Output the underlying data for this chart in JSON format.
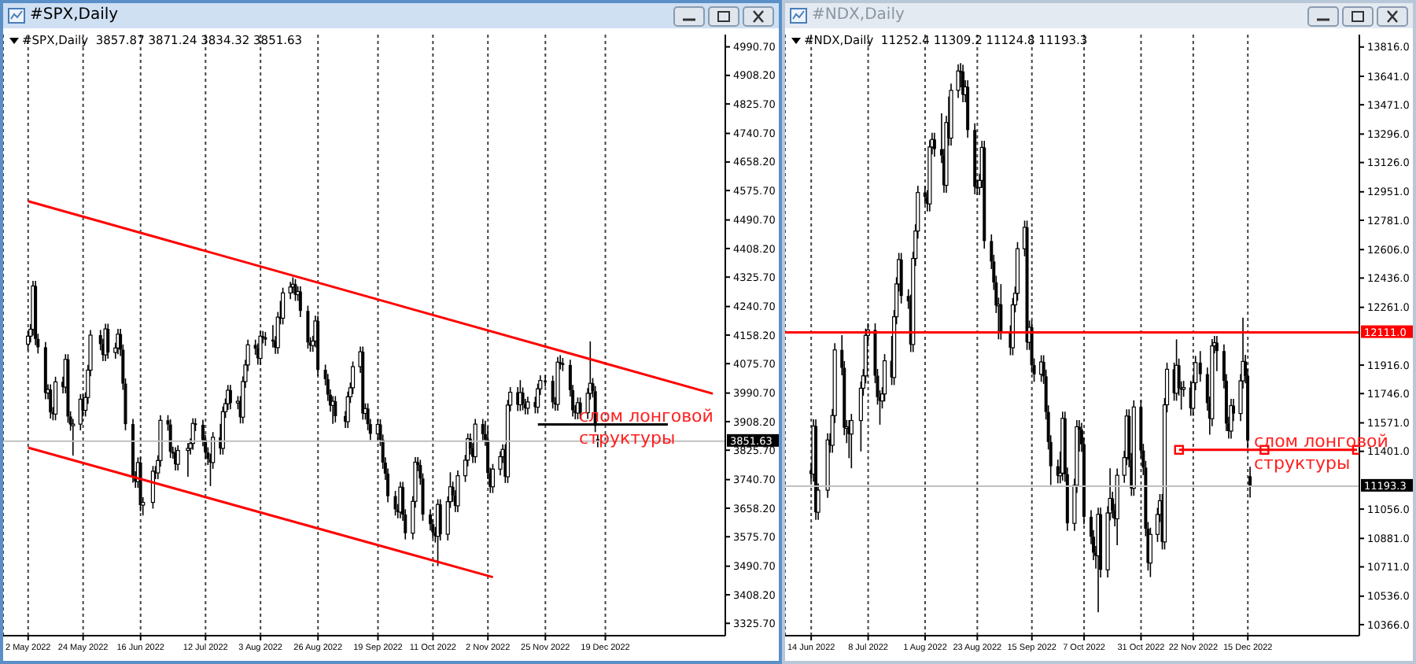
{
  "chart_data": [
    {
      "type": "candlestick",
      "title": "#SPX,Daily",
      "subtitle": "#SPX,Daily  3857.87 3871.24 3834.32 3851.63",
      "color": "#000000",
      "grid": "x",
      "xlim": [
        "2022-04-22",
        "2023-02-05"
      ],
      "xticks": [
        {
          "value": "2022-05-02",
          "label": "2 May 2022"
        },
        {
          "value": "2022-05-24",
          "label": "24 May 2022"
        },
        {
          "value": "2022-06-16",
          "label": "16 Jun 2022"
        },
        {
          "value": "2022-07-12",
          "label": "12 Jul 2022"
        },
        {
          "value": "2022-08-03",
          "label": "3 Aug 2022"
        },
        {
          "value": "2022-08-26",
          "label": "26 Aug 2022"
        },
        {
          "value": "2022-09-19",
          "label": "19 Sep 2022"
        },
        {
          "value": "2022-10-11",
          "label": "11 Oct 2022"
        },
        {
          "value": "2022-11-02",
          "label": "2 Nov 2022"
        },
        {
          "value": "2022-11-25",
          "label": "25 Nov 2022"
        },
        {
          "value": "2022-12-19",
          "label": "19 Dec 2022"
        }
      ],
      "ylim": [
        3290,
        5026
      ],
      "yticks": [
        {
          "value": 4990.7,
          "label": "4990.70"
        },
        {
          "value": 4908.2,
          "label": "4908.20"
        },
        {
          "value": 4825.7,
          "label": "4825.70"
        },
        {
          "value": 4740.7,
          "label": "4740.70"
        },
        {
          "value": 4658.2,
          "label": "4658.20"
        },
        {
          "value": 4575.7,
          "label": "4575.70"
        },
        {
          "value": 4490.7,
          "label": "4490.70"
        },
        {
          "value": 4408.2,
          "label": "4408.20"
        },
        {
          "value": 4325.7,
          "label": "4325.70"
        },
        {
          "value": 4240.7,
          "label": "4240.70"
        },
        {
          "value": 4158.2,
          "label": "4158.20"
        },
        {
          "value": 4075.7,
          "label": "4075.70"
        },
        {
          "value": 3990.7,
          "label": "3990.70"
        },
        {
          "value": 3908.2,
          "label": "3908.20"
        },
        {
          "value": 3825.7,
          "label": "3825.70"
        },
        {
          "value": 3740.7,
          "label": "3740.70"
        },
        {
          "value": 3658.2,
          "label": "3658.20"
        },
        {
          "value": 3575.7,
          "label": "3575.70"
        },
        {
          "value": 3490.7,
          "label": "3490.70"
        },
        {
          "value": 3408.2,
          "label": "3408.20"
        },
        {
          "value": 3325.7,
          "label": "3325.70"
        }
      ],
      "x": [
        "2022-05-02",
        "2022-05-03",
        "2022-05-04",
        "2022-05-05",
        "2022-05-06",
        "2022-05-09",
        "2022-05-10",
        "2022-05-11",
        "2022-05-12",
        "2022-05-13",
        "2022-05-16",
        "2022-05-17",
        "2022-05-18",
        "2022-05-19",
        "2022-05-20",
        "2022-05-23",
        "2022-05-24",
        "2022-05-25",
        "2022-05-26",
        "2022-05-27",
        "2022-05-31",
        "2022-06-01",
        "2022-06-02",
        "2022-06-03",
        "2022-06-06",
        "2022-06-07",
        "2022-06-08",
        "2022-06-09",
        "2022-06-10",
        "2022-06-13",
        "2022-06-14",
        "2022-06-15",
        "2022-06-16",
        "2022-06-17",
        "2022-06-21",
        "2022-06-22",
        "2022-06-23",
        "2022-06-24",
        "2022-06-27",
        "2022-06-28",
        "2022-06-29",
        "2022-06-30",
        "2022-07-01",
        "2022-07-05",
        "2022-07-06",
        "2022-07-07",
        "2022-07-08",
        "2022-07-11",
        "2022-07-12",
        "2022-07-13",
        "2022-07-14",
        "2022-07-15",
        "2022-07-18",
        "2022-07-19",
        "2022-07-20",
        "2022-07-21",
        "2022-07-22",
        "2022-07-25",
        "2022-07-26",
        "2022-07-27",
        "2022-07-28",
        "2022-07-29",
        "2022-08-01",
        "2022-08-02",
        "2022-08-03",
        "2022-08-04",
        "2022-08-05",
        "2022-08-08",
        "2022-08-09",
        "2022-08-10",
        "2022-08-11",
        "2022-08-12",
        "2022-08-15",
        "2022-08-16",
        "2022-08-17",
        "2022-08-18",
        "2022-08-19",
        "2022-08-22",
        "2022-08-23",
        "2022-08-24",
        "2022-08-25",
        "2022-08-26",
        "2022-08-29",
        "2022-08-30",
        "2022-08-31",
        "2022-09-01",
        "2022-09-02",
        "2022-09-06",
        "2022-09-07",
        "2022-09-08",
        "2022-09-09",
        "2022-09-12",
        "2022-09-13",
        "2022-09-14",
        "2022-09-15",
        "2022-09-16",
        "2022-09-19",
        "2022-09-20",
        "2022-09-21",
        "2022-09-22",
        "2022-09-23",
        "2022-09-26",
        "2022-09-27",
        "2022-09-28",
        "2022-09-29",
        "2022-09-30",
        "2022-10-03",
        "2022-10-04",
        "2022-10-05",
        "2022-10-06",
        "2022-10-07",
        "2022-10-10",
        "2022-10-11",
        "2022-10-12",
        "2022-10-13",
        "2022-10-14",
        "2022-10-17",
        "2022-10-18",
        "2022-10-19",
        "2022-10-20",
        "2022-10-21",
        "2022-10-24",
        "2022-10-25",
        "2022-10-26",
        "2022-10-27",
        "2022-10-28",
        "2022-10-31",
        "2022-11-01",
        "2022-11-02",
        "2022-11-03",
        "2022-11-04",
        "2022-11-07",
        "2022-11-08",
        "2022-11-09",
        "2022-11-10",
        "2022-11-11",
        "2022-11-14",
        "2022-11-15",
        "2022-11-16",
        "2022-11-17",
        "2022-11-18",
        "2022-11-21",
        "2022-11-22",
        "2022-11-23",
        "2022-11-25",
        "2022-11-28",
        "2022-11-29",
        "2022-11-30",
        "2022-12-01",
        "2022-12-02",
        "2022-12-05",
        "2022-12-06",
        "2022-12-07",
        "2022-12-08",
        "2022-12-09",
        "2022-12-12",
        "2022-12-13",
        "2022-12-14",
        "2022-12-15",
        "2022-12-16"
      ],
      "ohlc": [
        [
          4132,
          4170,
          4114,
          4155
        ],
        [
          4155,
          4190,
          4137,
          4175
        ],
        [
          4175,
          4315,
          4157,
          4300
        ],
        [
          4300,
          4315,
          4129,
          4147
        ],
        [
          4147,
          4162,
          4105,
          4123
        ],
        [
          4123,
          4138,
          3973,
          3991
        ],
        [
          3991,
          4016,
          3973,
          4001
        ],
        [
          4001,
          4016,
          3917,
          3935
        ],
        [
          3935,
          3950,
          3912,
          3930
        ],
        [
          3930,
          4038,
          3912,
          4023
        ],
        [
          4023,
          4038,
          3990,
          4008
        ],
        [
          4008,
          4103,
          3990,
          4088
        ],
        [
          4088,
          4103,
          3905,
          3923
        ],
        [
          3923,
          3938,
          3882,
          3900
        ],
        [
          3900,
          3916,
          3810,
          3901
        ],
        [
          3901,
          3988,
          3883,
          3973
        ],
        [
          3973,
          3988,
          3923,
          3941
        ],
        [
          3941,
          3993,
          3923,
          3978
        ],
        [
          3978,
          4072,
          3960,
          4057
        ],
        [
          4057,
          4173,
          4039,
          4158
        ],
        [
          4158,
          4173,
          4114,
          4132
        ],
        [
          4132,
          4147,
          4083,
          4101
        ],
        [
          4101,
          4191,
          4083,
          4176
        ],
        [
          4176,
          4191,
          4090,
          4108
        ],
        [
          4108,
          4136,
          4090,
          4121
        ],
        [
          4121,
          4176,
          4103,
          4161
        ],
        [
          4161,
          4176,
          4098,
          4116
        ],
        [
          4116,
          4131,
          4000,
          4018
        ],
        [
          4018,
          4033,
          3883,
          3901
        ],
        [
          3901,
          3916,
          3732,
          3750
        ],
        [
          3750,
          3765,
          3717,
          3735
        ],
        [
          3735,
          3805,
          3717,
          3790
        ],
        [
          3790,
          3805,
          3649,
          3667
        ],
        [
          3667,
          3690,
          3637,
          3675
        ],
        [
          3675,
          3780,
          3657,
          3765
        ],
        [
          3765,
          3780,
          3742,
          3760
        ],
        [
          3760,
          3811,
          3742,
          3796
        ],
        [
          3796,
          3927,
          3778,
          3912
        ],
        [
          3912,
          3927,
          3882,
          3900
        ],
        [
          3900,
          3915,
          3803,
          3821
        ],
        [
          3821,
          3836,
          3801,
          3819
        ],
        [
          3819,
          3834,
          3767,
          3785
        ],
        [
          3785,
          3840,
          3767,
          3825
        ],
        [
          3825,
          3846,
          3749,
          3831
        ],
        [
          3831,
          3860,
          3813,
          3845
        ],
        [
          3845,
          3918,
          3827,
          3903
        ],
        [
          3903,
          3918,
          3881,
          3899
        ],
        [
          3899,
          3914,
          3837,
          3855
        ],
        [
          3855,
          3870,
          3801,
          3819
        ],
        [
          3819,
          3834,
          3783,
          3801
        ],
        [
          3801,
          3816,
          3722,
          3790
        ],
        [
          3790,
          3878,
          3772,
          3863
        ],
        [
          3863,
          3902,
          3813,
          3831
        ],
        [
          3831,
          3952,
          3813,
          3937
        ],
        [
          3937,
          3975,
          3919,
          3960
        ],
        [
          3960,
          4014,
          3942,
          3999
        ],
        [
          3999,
          4014,
          3944,
          3962
        ],
        [
          3962,
          3982,
          3944,
          3967
        ],
        [
          3967,
          3982,
          3903,
          3921
        ],
        [
          3921,
          4039,
          3903,
          4024
        ],
        [
          4024,
          4087,
          4006,
          4072
        ],
        [
          4072,
          4145,
          4054,
          4130
        ],
        [
          4130,
          4145,
          4101,
          4119
        ],
        [
          4119,
          4134,
          4073,
          4091
        ],
        [
          4091,
          4170,
          4073,
          4155
        ],
        [
          4155,
          4170,
          4134,
          4152
        ],
        [
          4152,
          4167,
          4127,
          4145
        ],
        [
          4145,
          4187,
          4122,
          4140
        ],
        [
          4140,
          4155,
          4104,
          4122
        ],
        [
          4122,
          4225,
          4104,
          4210
        ],
        [
          4210,
          4257,
          4189,
          4207
        ],
        [
          4207,
          4295,
          4189,
          4280
        ],
        [
          4280,
          4312,
          4262,
          4297
        ],
        [
          4297,
          4325,
          4279,
          4305
        ],
        [
          4305,
          4320,
          4257,
          4275
        ],
        [
          4275,
          4299,
          4257,
          4284
        ],
        [
          4284,
          4299,
          4210,
          4228
        ],
        [
          4228,
          4243,
          4119,
          4137
        ],
        [
          4137,
          4152,
          4110,
          4128
        ],
        [
          4128,
          4156,
          4110,
          4141
        ],
        [
          4141,
          4214,
          4123,
          4199
        ],
        [
          4199,
          4214,
          4040,
          4058
        ],
        [
          4058,
          4073,
          4013,
          4031
        ],
        [
          4031,
          4046,
          3968,
          3986
        ],
        [
          3986,
          4001,
          3937,
          3955
        ],
        [
          3955,
          3982,
          3902,
          3967
        ],
        [
          3967,
          3982,
          3906,
          3924
        ],
        [
          3924,
          3939,
          3890,
          3908
        ],
        [
          3908,
          3995,
          3890,
          3980
        ],
        [
          3980,
          4021,
          3962,
          4006
        ],
        [
          4006,
          4082,
          3988,
          4067
        ],
        [
          4067,
          4125,
          4049,
          4110
        ],
        [
          4110,
          4125,
          3914,
          3932
        ],
        [
          3932,
          3961,
          3914,
          3946
        ],
        [
          3946,
          3961,
          3883,
          3901
        ],
        [
          3901,
          3916,
          3855,
          3873
        ],
        [
          3873,
          3915,
          3855,
          3900
        ],
        [
          3900,
          3915,
          3838,
          3856
        ],
        [
          3856,
          3871,
          3772,
          3790
        ],
        [
          3790,
          3805,
          3740,
          3758
        ],
        [
          3758,
          3773,
          3675,
          3693
        ],
        [
          3693,
          3708,
          3637,
          3655
        ],
        [
          3655,
          3670,
          3629,
          3647
        ],
        [
          3647,
          3734,
          3629,
          3719
        ],
        [
          3719,
          3734,
          3622,
          3640
        ],
        [
          3640,
          3655,
          3568,
          3586
        ],
        [
          3586,
          3693,
          3568,
          3678
        ],
        [
          3678,
          3806,
          3660,
          3791
        ],
        [
          3791,
          3806,
          3765,
          3783
        ],
        [
          3783,
          3798,
          3726,
          3744
        ],
        [
          3744,
          3759,
          3622,
          3640
        ],
        [
          3640,
          3655,
          3594,
          3612
        ],
        [
          3612,
          3627,
          3571,
          3589
        ],
        [
          3589,
          3604,
          3559,
          3577
        ],
        [
          3577,
          3684,
          3491,
          3669
        ],
        [
          3669,
          3684,
          3565,
          3583
        ],
        [
          3583,
          3692,
          3565,
          3677
        ],
        [
          3677,
          3762,
          3659,
          3720
        ],
        [
          3720,
          3735,
          3677,
          3695
        ],
        [
          3695,
          3710,
          3647,
          3665
        ],
        [
          3665,
          3767,
          3647,
          3752
        ],
        [
          3752,
          3812,
          3734,
          3797
        ],
        [
          3797,
          3874,
          3779,
          3859
        ],
        [
          3859,
          3874,
          3813,
          3831
        ],
        [
          3831,
          3846,
          3789,
          3807
        ],
        [
          3807,
          3916,
          3789,
          3901
        ],
        [
          3901,
          3916,
          3854,
          3872
        ],
        [
          3872,
          3911,
          3838,
          3856
        ],
        [
          3856,
          3894,
          3742,
          3760
        ],
        [
          3760,
          3775,
          3702,
          3720
        ],
        [
          3720,
          3786,
          3702,
          3771
        ],
        [
          3771,
          3822,
          3753,
          3807
        ],
        [
          3807,
          3843,
          3789,
          3828
        ],
        [
          3828,
          3843,
          3731,
          3749
        ],
        [
          3749,
          3971,
          3731,
          3956
        ],
        [
          3956,
          4008,
          3938,
          3993
        ],
        [
          3993,
          4008,
          3939,
          3957
        ],
        [
          3957,
          4028,
          3939,
          3992
        ],
        [
          3992,
          4007,
          3941,
          3959
        ],
        [
          3959,
          3974,
          3929,
          3947
        ],
        [
          3947,
          3980,
          3929,
          3965
        ],
        [
          3965,
          3980,
          3932,
          3950
        ],
        [
          3950,
          4018,
          3932,
          4003
        ],
        [
          4003,
          4042,
          3985,
          4027
        ],
        [
          4027,
          4042,
          4009,
          4026
        ],
        [
          4026,
          4041,
          3946,
          3964
        ],
        [
          3964,
          3979,
          3940,
          3958
        ],
        [
          3958,
          4095,
          3940,
          4080
        ],
        [
          4080,
          4100,
          4059,
          4077
        ],
        [
          4077,
          4092,
          4054,
          4072
        ],
        [
          4072,
          4087,
          3981,
          3999
        ],
        [
          3999,
          4014,
          3923,
          3941
        ],
        [
          3941,
          3956,
          3915,
          3933
        ],
        [
          3933,
          3978,
          3915,
          3963
        ],
        [
          3963,
          3978,
          3916,
          3934
        ],
        [
          3934,
          4005,
          3916,
          3990
        ],
        [
          3990,
          4140,
          3972,
          4019
        ],
        [
          4019,
          4034,
          3978,
          3996
        ],
        [
          3996,
          4011,
          3878,
          3896
        ],
        [
          3857.87,
          3871.24,
          3834.32,
          3851.63
        ]
      ],
      "series": [
        {
          "type": "line",
          "color": "#ff0000",
          "x": [
            "2022-05-02",
            "2023-01-31"
          ],
          "values": [
            4545,
            3989
          ]
        },
        {
          "type": "line",
          "color": "#ff0000",
          "x": [
            "2022-05-02",
            "2022-11-04"
          ],
          "values": [
            3833,
            3459
          ]
        },
        {
          "type": "line",
          "color": "#000000",
          "x": [
            "2022-11-22",
            "2023-01-13"
          ],
          "values": [
            3900,
            3900
          ]
        }
      ],
      "ref_lines": [
        {
          "axis": "y",
          "value": 3851.63,
          "label": "3851.63",
          "color": "#c0c0c0"
        }
      ],
      "annotations": [
        "слом лонговой структуры"
      ]
    },
    {
      "type": "candlestick",
      "title": "#NDX,Daily",
      "subtitle": "#NDX,Daily  11252.4 11309.2 11124.8 11193.3",
      "color": "#000000",
      "grid": "x",
      "xlim": [
        "2022-06-03",
        "2023-01-31"
      ],
      "xticks": [
        {
          "value": "2022-06-14",
          "label": "14 Jun 2022"
        },
        {
          "value": "2022-07-08",
          "label": "8 Jul 2022"
        },
        {
          "value": "2022-08-01",
          "label": "1 Aug 2022"
        },
        {
          "value": "2022-08-23",
          "label": "23 Aug 2022"
        },
        {
          "value": "2022-09-15",
          "label": "15 Sep 2022"
        },
        {
          "value": "2022-10-07",
          "label": "7 Oct 2022"
        },
        {
          "value": "2022-10-31",
          "label": "31 Oct 2022"
        },
        {
          "value": "2022-11-22",
          "label": "22 Nov 2022"
        },
        {
          "value": "2022-12-15",
          "label": "15 Dec 2022"
        }
      ],
      "ylim": [
        10300,
        13890
      ],
      "yticks": [
        {
          "value": 13816,
          "label": "13816.0"
        },
        {
          "value": 13641,
          "label": "13641.0"
        },
        {
          "value": 13471,
          "label": "13471.0"
        },
        {
          "value": 13296,
          "label": "13296.0"
        },
        {
          "value": 13126,
          "label": "13126.0"
        },
        {
          "value": 12951,
          "label": "12951.0"
        },
        {
          "value": 12781,
          "label": "12781.0"
        },
        {
          "value": 12606,
          "label": "12606.0"
        },
        {
          "value": 12436,
          "label": "12436.0"
        },
        {
          "value": 12261,
          "label": "12261.0"
        },
        {
          "value": 11916,
          "label": "11916.0"
        },
        {
          "value": 11746,
          "label": "11746.0"
        },
        {
          "value": 11571,
          "label": "11571.0"
        },
        {
          "value": 11401,
          "label": "11401.0"
        },
        {
          "value": 11056,
          "label": "11056.0"
        },
        {
          "value": 10881,
          "label": "10881.0"
        },
        {
          "value": 10711,
          "label": "10711.0"
        },
        {
          "value": 10536,
          "label": "10536.0"
        },
        {
          "value": 10366,
          "label": "10366.0"
        }
      ],
      "x": [
        "2022-06-14",
        "2022-06-15",
        "2022-06-16",
        "2022-06-17",
        "2022-06-21",
        "2022-06-22",
        "2022-06-23",
        "2022-06-24",
        "2022-06-27",
        "2022-06-28",
        "2022-06-29",
        "2022-06-30",
        "2022-07-01",
        "2022-07-05",
        "2022-07-06",
        "2022-07-07",
        "2022-07-08",
        "2022-07-11",
        "2022-07-12",
        "2022-07-13",
        "2022-07-14",
        "2022-07-15",
        "2022-07-18",
        "2022-07-19",
        "2022-07-20",
        "2022-07-21",
        "2022-07-22",
        "2022-07-25",
        "2022-07-26",
        "2022-07-27",
        "2022-07-28",
        "2022-07-29",
        "2022-08-01",
        "2022-08-02",
        "2022-08-03",
        "2022-08-04",
        "2022-08-05",
        "2022-08-08",
        "2022-08-09",
        "2022-08-10",
        "2022-08-11",
        "2022-08-12",
        "2022-08-15",
        "2022-08-16",
        "2022-08-17",
        "2022-08-18",
        "2022-08-19",
        "2022-08-22",
        "2022-08-23",
        "2022-08-24",
        "2022-08-25",
        "2022-08-26",
        "2022-08-29",
        "2022-08-30",
        "2022-08-31",
        "2022-09-01",
        "2022-09-02",
        "2022-09-06",
        "2022-09-07",
        "2022-09-08",
        "2022-09-09",
        "2022-09-12",
        "2022-09-13",
        "2022-09-14",
        "2022-09-15",
        "2022-09-16",
        "2022-09-19",
        "2022-09-20",
        "2022-09-21",
        "2022-09-22",
        "2022-09-23",
        "2022-09-26",
        "2022-09-27",
        "2022-09-28",
        "2022-09-29",
        "2022-09-30",
        "2022-10-03",
        "2022-10-04",
        "2022-10-05",
        "2022-10-06",
        "2022-10-07",
        "2022-10-10",
        "2022-10-11",
        "2022-10-12",
        "2022-10-13",
        "2022-10-14",
        "2022-10-17",
        "2022-10-18",
        "2022-10-19",
        "2022-10-20",
        "2022-10-21",
        "2022-10-24",
        "2022-10-25",
        "2022-10-26",
        "2022-10-27",
        "2022-10-28",
        "2022-10-31",
        "2022-11-01",
        "2022-11-02",
        "2022-11-03",
        "2022-11-04",
        "2022-11-07",
        "2022-11-08",
        "2022-11-09",
        "2022-11-10",
        "2022-11-11",
        "2022-11-14",
        "2022-11-15",
        "2022-11-16",
        "2022-11-17",
        "2022-11-18",
        "2022-11-21",
        "2022-11-22",
        "2022-11-23",
        "2022-11-25",
        "2022-11-28",
        "2022-11-29",
        "2022-11-30",
        "2022-12-01",
        "2022-12-02",
        "2022-12-05",
        "2022-12-06",
        "2022-12-07",
        "2022-12-08",
        "2022-12-09",
        "2022-12-12",
        "2022-12-13",
        "2022-12-14",
        "2022-12-15",
        "2022-12-16"
      ],
      "ohlc": [
        [
          11288,
          11328,
          11220,
          11265
        ],
        [
          11265,
          11592,
          11220,
          11552
        ],
        [
          11552,
          11592,
          10992,
          11037
        ],
        [
          11037,
          11209,
          10992,
          11169
        ],
        [
          11169,
          11509,
          11124,
          11469
        ],
        [
          11469,
          11509,
          11392,
          11437
        ],
        [
          11437,
          11655,
          11392,
          11615
        ],
        [
          11615,
          12047,
          11570,
          12007
        ],
        [
          12007,
          12095,
          11855,
          11900
        ],
        [
          11900,
          11940,
          11497,
          11542
        ],
        [
          11542,
          11588,
          11450,
          11548
        ],
        [
          11548,
          11588,
          11360,
          11504
        ],
        [
          11504,
          11625,
          11300,
          11585
        ],
        [
          11585,
          11818,
          11400,
          11778
        ],
        [
          11778,
          11892,
          11733,
          11852
        ],
        [
          11852,
          12134,
          11807,
          12094
        ],
        [
          12094,
          12166,
          12049,
          12126
        ],
        [
          12126,
          12166,
          11808,
          11853
        ],
        [
          11853,
          11893,
          11680,
          11725
        ],
        [
          11725,
          11765,
          11560,
          11702
        ],
        [
          11702,
          11784,
          11657,
          11744
        ],
        [
          11744,
          11982,
          11699,
          11942
        ],
        [
          11942,
          12090,
          11797,
          11842
        ],
        [
          11842,
          12245,
          11797,
          12205
        ],
        [
          12205,
          12441,
          12160,
          12401
        ],
        [
          12401,
          12586,
          12356,
          12546
        ],
        [
          12546,
          12586,
          12284,
          12329
        ],
        [
          12329,
          12369,
          12252,
          12297
        ],
        [
          12297,
          12337,
          11994,
          12039
        ],
        [
          12039,
          12593,
          11994,
          12553
        ],
        [
          12553,
          12757,
          12508,
          12717
        ],
        [
          12717,
          12987,
          12672,
          12947
        ],
        [
          12947,
          12987,
          12876,
          12921
        ],
        [
          12921,
          12961,
          12834,
          12879
        ],
        [
          12879,
          13259,
          12834,
          13219
        ],
        [
          13219,
          13304,
          13174,
          13264
        ],
        [
          13264,
          13304,
          13161,
          13206
        ],
        [
          13206,
          13420,
          13123,
          13168
        ],
        [
          13168,
          13208,
          12945,
          12990
        ],
        [
          12990,
          13405,
          12945,
          13365
        ],
        [
          13365,
          13520,
          13227,
          13272
        ],
        [
          13272,
          13597,
          13227,
          13557
        ],
        [
          13557,
          13713,
          13512,
          13673
        ],
        [
          13673,
          13720,
          13575,
          13670
        ],
        [
          13670,
          13710,
          13486,
          13531
        ],
        [
          13531,
          13618,
          13486,
          13578
        ],
        [
          13578,
          13618,
          13275,
          13320
        ],
        [
          13320,
          13360,
          12936,
          12981
        ],
        [
          12981,
          13021,
          12932,
          12977
        ],
        [
          12977,
          13059,
          12932,
          13019
        ],
        [
          13019,
          13256,
          12974,
          13216
        ],
        [
          13216,
          13256,
          12612,
          12657
        ],
        [
          12657,
          12697,
          12490,
          12535
        ],
        [
          12535,
          12575,
          12365,
          12410
        ],
        [
          12410,
          12450,
          12227,
          12272
        ],
        [
          12272,
          12319,
          12070,
          12279
        ],
        [
          12279,
          12400,
          12068,
          12113
        ],
        [
          12113,
          12153,
          11975,
          12020
        ],
        [
          12020,
          12316,
          11975,
          12276
        ],
        [
          12276,
          12385,
          12231,
          12345
        ],
        [
          12345,
          12651,
          12300,
          12611
        ],
        [
          12611,
          12779,
          12566,
          12739
        ],
        [
          12739,
          12779,
          12007,
          12052
        ],
        [
          12052,
          12182,
          12007,
          12142
        ],
        [
          12142,
          12182,
          11871,
          11916
        ],
        [
          11916,
          11956,
          11816,
          11861
        ],
        [
          11861,
          11975,
          11816,
          11935
        ],
        [
          11935,
          11975,
          11804,
          11849
        ],
        [
          11849,
          11889,
          11591,
          11636
        ],
        [
          11636,
          11676,
          11412,
          11457
        ],
        [
          11457,
          11497,
          11200,
          11312
        ],
        [
          11312,
          11352,
          11210,
          11255
        ],
        [
          11255,
          11400,
          11210,
          11271
        ],
        [
          11271,
          11638,
          11226,
          11598
        ],
        [
          11598,
          11638,
          11219,
          11264
        ],
        [
          11264,
          11304,
          10926,
          10971
        ],
        [
          10971,
          11238,
          10926,
          11198
        ],
        [
          11198,
          11588,
          11153,
          11548
        ],
        [
          11548,
          11588,
          11400,
          11531
        ],
        [
          11531,
          11571,
          11398,
          11443
        ],
        [
          11443,
          11483,
          10965,
          11010
        ],
        [
          11010,
          11050,
          10846,
          10891
        ],
        [
          10891,
          10931,
          10751,
          10796
        ],
        [
          10796,
          10836,
          10700,
          10777
        ],
        [
          10777,
          11065,
          10440,
          11025
        ],
        [
          11025,
          11065,
          10648,
          10693
        ],
        [
          10693,
          11073,
          10648,
          11033
        ],
        [
          11033,
          11300,
          10988,
          11120
        ],
        [
          11120,
          11160,
          11002,
          11047
        ],
        [
          11047,
          11087,
          10953,
          10998
        ],
        [
          10998,
          11298,
          10840,
          11258
        ],
        [
          11258,
          11404,
          11213,
          11364
        ],
        [
          11364,
          11652,
          11319,
          11612
        ],
        [
          11612,
          11652,
          11306,
          11351
        ],
        [
          11351,
          11391,
          11135,
          11180
        ],
        [
          11180,
          11706,
          11135,
          11666
        ],
        [
          11666,
          11706,
          11361,
          11406
        ],
        [
          11406,
          11446,
          11259,
          11304
        ],
        [
          11304,
          11344,
          10894,
          10939
        ],
        [
          10939,
          10979,
          10689,
          10734
        ],
        [
          10734,
          10945,
          10650,
          10905
        ],
        [
          10905,
          11064,
          10860,
          11024
        ],
        [
          11024,
          11146,
          10979,
          11106
        ],
        [
          11106,
          11146,
          10815,
          10860
        ],
        [
          10860,
          11719,
          10815,
          11679
        ],
        [
          11679,
          11931,
          11634,
          11891
        ],
        [
          11891,
          11931,
          11703,
          11748
        ],
        [
          11748,
          12070,
          11703,
          11915
        ],
        [
          11915,
          11955,
          11734,
          11779
        ],
        [
          11779,
          11819,
          11650,
          11772
        ],
        [
          11772,
          11822,
          11727,
          11782
        ],
        [
          11782,
          11822,
          11613,
          11658
        ],
        [
          11658,
          11851,
          11613,
          11811
        ],
        [
          11811,
          11971,
          11766,
          11931
        ],
        [
          11931,
          12000,
          11817,
          11862
        ],
        [
          11862,
          11902,
          11644,
          11689
        ],
        [
          11689,
          11729,
          11500,
          11596
        ],
        [
          11596,
          12071,
          11551,
          12031
        ],
        [
          12031,
          12090,
          11986,
          12050
        ],
        [
          12050,
          12090,
          11880,
          12000
        ],
        [
          12000,
          12040,
          11777,
          11822
        ],
        [
          11822,
          11862,
          11522,
          11567
        ],
        [
          11567,
          11607,
          11477,
          11522
        ],
        [
          11522,
          11714,
          11477,
          11674
        ],
        [
          11674,
          11714,
          11582,
          11627
        ],
        [
          11627,
          11862,
          11582,
          11822
        ],
        [
          11822,
          12200,
          11777,
          11938
        ],
        [
          11938,
          11978,
          11807,
          11852
        ],
        [
          11852,
          11892,
          11420,
          11465
        ],
        [
          11252.4,
          11309.2,
          11124.8,
          11193.3
        ]
      ],
      "series": [
        {
          "type": "line",
          "color": "#ff0000",
          "marker": "square",
          "x": [
            "2022-11-16",
            "2022-12-22",
            "2023-01-30"
          ],
          "values": [
            11410,
            11410,
            11410
          ]
        }
      ],
      "ref_lines": [
        {
          "axis": "y",
          "value": 12111.0,
          "label": "12111.0",
          "color": "#ff0000"
        },
        {
          "axis": "y",
          "value": 11193.3,
          "label": "11193.3",
          "color": "#c0c0c0"
        }
      ],
      "annotations": [
        "слом лонговой структуры"
      ]
    }
  ]
}
